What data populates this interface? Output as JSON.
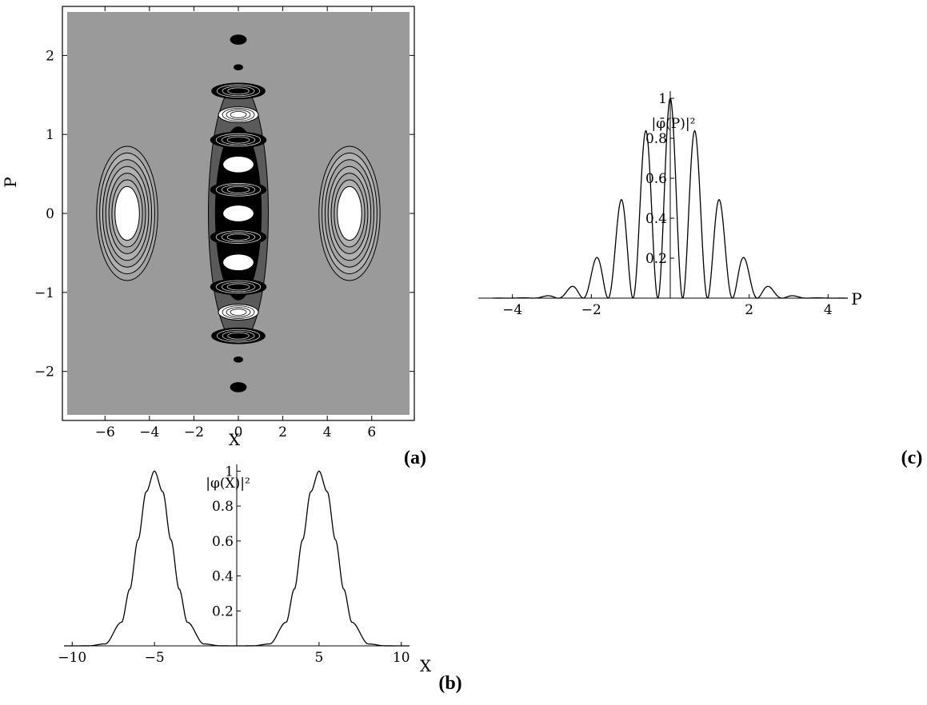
{
  "panels": {
    "a": {
      "label": "(a)"
    },
    "b": {
      "label": "(b)"
    },
    "c": {
      "label": "(c)"
    }
  },
  "chart_data": [
    {
      "id": "a",
      "type": "heatmap",
      "title": "",
      "xlabel": "X",
      "ylabel": "P",
      "xlim": [
        -7.7,
        7.7
      ],
      "ylim": [
        -2.55,
        2.55
      ],
      "xticks": [
        -6,
        -4,
        -2,
        0,
        2,
        4,
        6
      ],
      "yticks": [
        -2,
        -1,
        0,
        1,
        2
      ],
      "xtick_labels": [
        "−6",
        "−4",
        "−2",
        "0",
        "2",
        "4",
        "6"
      ],
      "ytick_labels": [
        "−2",
        "−1",
        "0",
        "1",
        "2"
      ],
      "lobes": [
        {
          "x": -5,
          "p": 0,
          "sx": 2.75,
          "sp": 1.7
        },
        {
          "x": 5,
          "p": 0,
          "sx": 2.75,
          "sp": 1.7
        }
      ],
      "bright_ellipses_center": [
        {
          "x": 0,
          "p": 0.62
        },
        {
          "x": 0,
          "p": 0.0
        },
        {
          "x": 0,
          "p": -0.62
        }
      ],
      "interference_fringe_p": [
        1.55,
        1.25,
        0.93,
        0.3,
        -0.3,
        -0.93,
        -1.25,
        -1.55
      ],
      "small_blobs_p": [
        2.2,
        1.85,
        -1.85,
        -2.2
      ],
      "colors": {
        "background": "#9a9a9a",
        "dark": "#000000",
        "bright": "#ffffff"
      }
    },
    {
      "id": "b",
      "type": "line",
      "title": "",
      "xlabel": "X",
      "ylabel": "|φ(X)|²",
      "xlim": [
        -10.5,
        10.5
      ],
      "ylim": [
        0,
        1.02
      ],
      "xticks": [
        -10,
        -5,
        5,
        10
      ],
      "yticks": [
        0.2,
        0.4,
        0.6,
        0.8,
        1
      ],
      "xtick_labels": [
        "−10",
        "−5",
        "5",
        "10"
      ],
      "ytick_labels": [
        "0.2",
        "0.4",
        "0.6",
        "0.8",
        "1"
      ],
      "series": [
        {
          "x": [
            -10,
            -9,
            -8,
            -7,
            -6.5,
            -6,
            -5.5,
            -5,
            -4.5,
            -4,
            -3.5,
            -3,
            -2,
            -1,
            0,
            1,
            2,
            3,
            3.5,
            4,
            4.5,
            5,
            5.5,
            6,
            6.5,
            7,
            8,
            9,
            10
          ],
          "y": [
            0,
            0.0003,
            0.011,
            0.135,
            0.325,
            0.607,
            0.882,
            1,
            0.882,
            0.607,
            0.325,
            0.135,
            0.011,
            0.0003,
            0,
            0.0003,
            0.011,
            0.135,
            0.325,
            0.607,
            0.882,
            1,
            0.882,
            0.607,
            0.325,
            0.135,
            0.011,
            0.0003,
            0
          ]
        }
      ]
    },
    {
      "id": "c",
      "type": "line",
      "title": "",
      "xlabel": "P",
      "ylabel": "|φ̄(P)|²",
      "xlim": [
        -4.5,
        4.5
      ],
      "ylim": [
        0,
        1.02
      ],
      "xticks": [
        -4,
        -2,
        2,
        4
      ],
      "yticks": [
        0.2,
        0.4,
        0.6,
        0.8,
        1
      ],
      "xtick_labels": [
        "−4",
        "−2",
        "2",
        "4"
      ],
      "ytick_labels": [
        "0.2",
        "0.4",
        "0.6",
        "0.8",
        "1"
      ],
      "series": [
        {
          "x": [
            -3.77,
            -3.14,
            -2.51,
            -1.88,
            -1.26,
            -0.63,
            0,
            0.63,
            1.26,
            1.88,
            2.51,
            3.14,
            3.77
          ],
          "y": [
            0.0,
            0.01,
            0.06,
            0.17,
            0.45,
            0.8,
            1.0,
            0.8,
            0.45,
            0.17,
            0.06,
            0.01,
            0.0
          ]
        }
      ]
    }
  ]
}
